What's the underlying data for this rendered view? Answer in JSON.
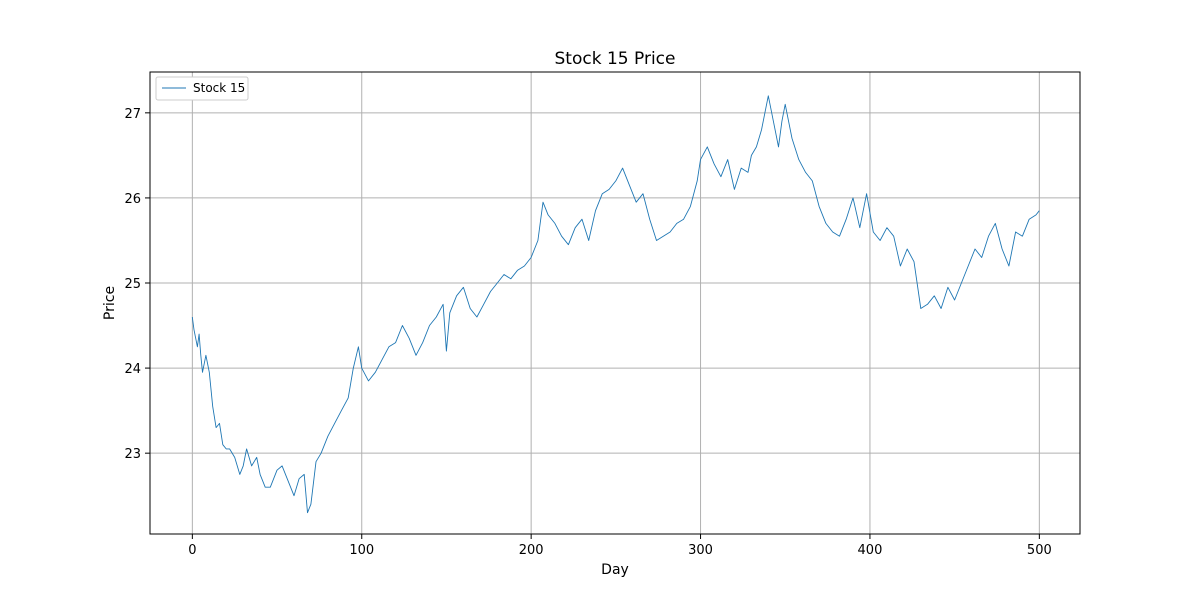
{
  "chart_data": {
    "type": "line",
    "title": "Stock 15 Price",
    "xlabel": "Day",
    "ylabel": "Price",
    "xlim": [
      -25,
      524
    ],
    "ylim": [
      22.05,
      27.48
    ],
    "xticks": [
      0,
      100,
      200,
      300,
      400,
      500
    ],
    "yticks": [
      23,
      24,
      25,
      26,
      27
    ],
    "grid": true,
    "legend_position": "upper-left",
    "colors": {
      "series": "#1f77b4",
      "grid": "#b0b0b0",
      "axes": "#000000"
    },
    "series": [
      {
        "name": "Stock 15",
        "x": [
          0,
          1,
          2,
          3,
          4,
          5,
          6,
          8,
          10,
          12,
          14,
          16,
          18,
          20,
          22,
          25,
          28,
          30,
          32,
          35,
          38,
          40,
          43,
          46,
          50,
          53,
          56,
          60,
          63,
          66,
          68,
          70,
          73,
          76,
          80,
          84,
          88,
          92,
          95,
          98,
          100,
          104,
          108,
          112,
          116,
          120,
          124,
          128,
          132,
          136,
          140,
          144,
          148,
          150,
          152,
          156,
          160,
          164,
          168,
          172,
          176,
          180,
          184,
          188,
          192,
          196,
          200,
          204,
          207,
          210,
          214,
          218,
          222,
          226,
          230,
          234,
          238,
          242,
          246,
          250,
          254,
          258,
          262,
          266,
          270,
          274,
          278,
          282,
          286,
          290,
          294,
          298,
          300,
          304,
          308,
          312,
          316,
          320,
          324,
          328,
          330,
          333,
          336,
          338,
          340,
          343,
          346,
          348,
          350,
          354,
          358,
          362,
          366,
          370,
          374,
          378,
          382,
          386,
          390,
          394,
          398,
          402,
          406,
          410,
          414,
          418,
          422,
          426,
          430,
          434,
          438,
          442,
          446,
          450,
          454,
          458,
          462,
          466,
          470,
          474,
          478,
          482,
          486,
          490,
          494,
          498,
          500
        ],
        "y": [
          24.6,
          24.45,
          24.35,
          24.25,
          24.4,
          24.15,
          23.95,
          24.15,
          23.95,
          23.55,
          23.3,
          23.35,
          23.1,
          23.05,
          23.05,
          22.95,
          22.75,
          22.85,
          23.05,
          22.85,
          22.95,
          22.75,
          22.6,
          22.6,
          22.8,
          22.85,
          22.7,
          22.5,
          22.7,
          22.75,
          22.3,
          22.4,
          22.9,
          23.0,
          23.2,
          23.35,
          23.5,
          23.65,
          24.0,
          24.25,
          24.0,
          23.85,
          23.95,
          24.1,
          24.25,
          24.3,
          24.5,
          24.35,
          24.15,
          24.3,
          24.5,
          24.6,
          24.75,
          24.2,
          24.65,
          24.85,
          24.95,
          24.7,
          24.6,
          24.75,
          24.9,
          25.0,
          25.1,
          25.05,
          25.15,
          25.2,
          25.3,
          25.5,
          25.95,
          25.8,
          25.7,
          25.55,
          25.45,
          25.65,
          25.75,
          25.5,
          25.85,
          26.05,
          26.1,
          26.2,
          26.35,
          26.15,
          25.95,
          26.05,
          25.75,
          25.5,
          25.55,
          25.6,
          25.7,
          25.75,
          25.9,
          26.2,
          26.45,
          26.6,
          26.4,
          26.25,
          26.45,
          26.1,
          26.35,
          26.3,
          26.5,
          26.6,
          26.8,
          27.0,
          27.2,
          26.9,
          26.6,
          26.9,
          27.1,
          26.7,
          26.45,
          26.3,
          26.2,
          25.9,
          25.7,
          25.6,
          25.55,
          25.75,
          26.0,
          25.65,
          26.05,
          25.6,
          25.5,
          25.65,
          25.55,
          25.2,
          25.4,
          25.25,
          24.7,
          24.75,
          24.85,
          24.7,
          24.95,
          24.8,
          25.0,
          25.2,
          25.4,
          25.3,
          25.55,
          25.7,
          25.4,
          25.2,
          25.6,
          25.55,
          25.75,
          25.8,
          25.85
        ]
      }
    ]
  }
}
